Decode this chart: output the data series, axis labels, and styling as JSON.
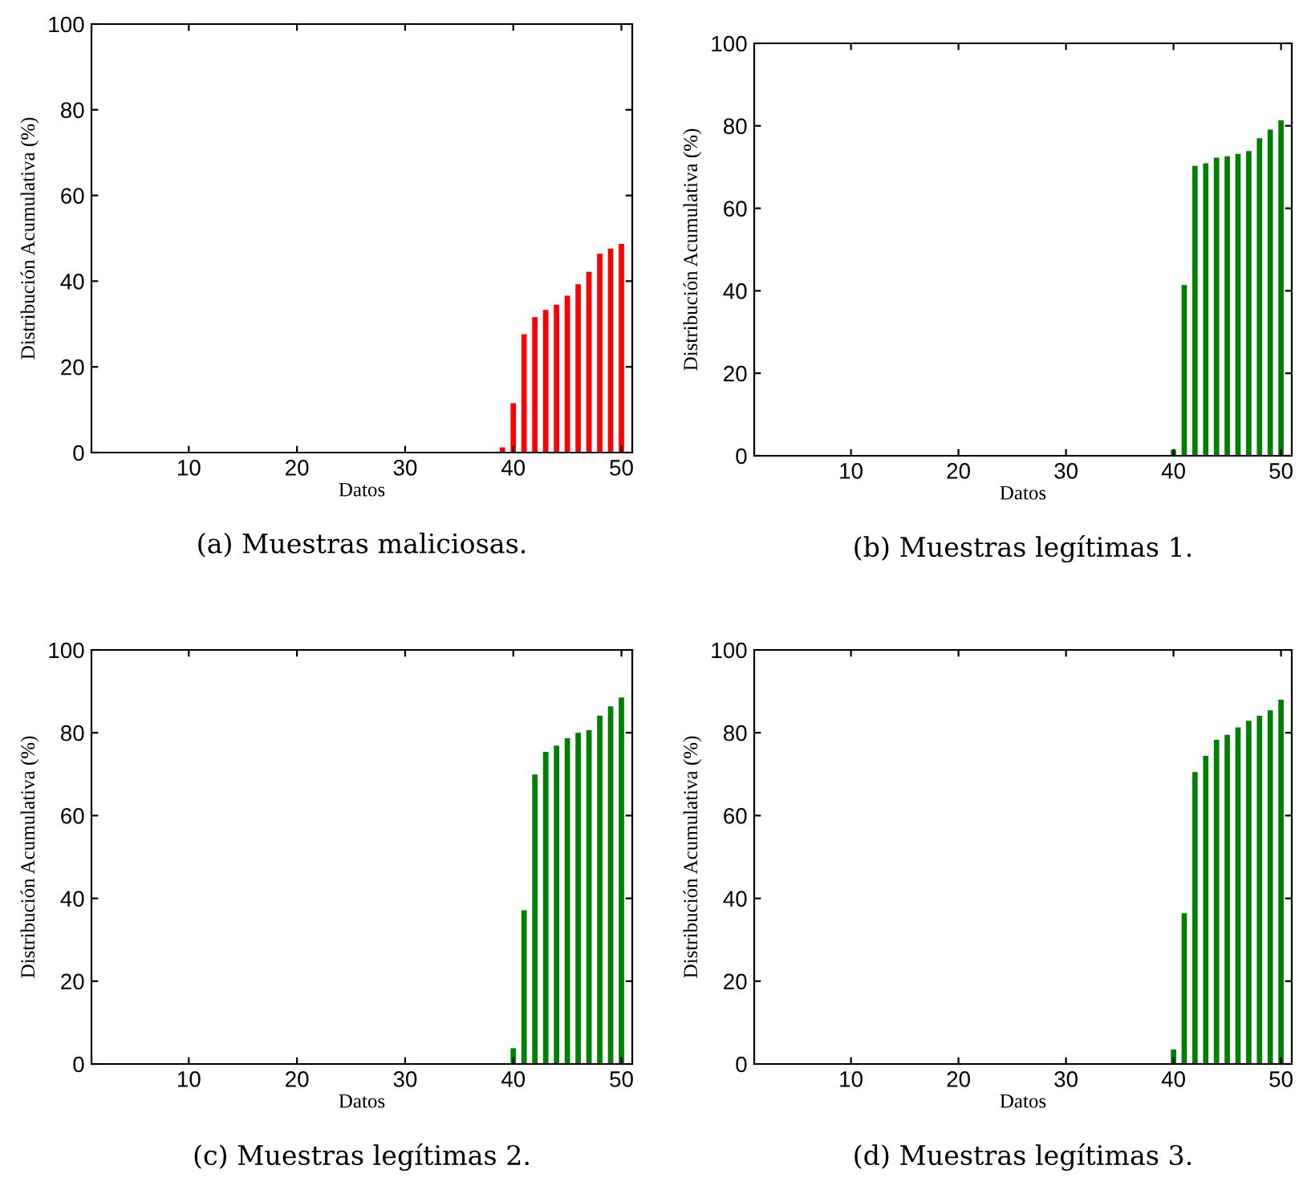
{
  "chart_data": [
    {
      "type": "bar",
      "xlabel": "Datos",
      "ylabel": "Distribución Acumulativa (%)",
      "annotations": [
        "(a) Muestras maliciosas."
      ],
      "xlim": [
        1,
        51
      ],
      "xticks": [
        10,
        20,
        30,
        40,
        50
      ],
      "ylim": [
        0,
        100
      ],
      "yticks": [
        0,
        20,
        40,
        60,
        80,
        100
      ],
      "x": [
        39,
        40,
        41,
        42,
        43,
        44,
        45,
        46,
        47,
        48,
        49,
        50
      ],
      "values": [
        1.2,
        11.5,
        27.6,
        31.6,
        33.3,
        34.5,
        36.6,
        39.3,
        42.2,
        46.4,
        47.6,
        48.7
      ],
      "color": "#ff0000"
    },
    {
      "type": "bar",
      "xlabel": "Datos",
      "ylabel": "Distribución Acumulativa (%)",
      "annotations": [
        "(b) Muestras legítimas 1."
      ],
      "xlim": [
        1,
        51
      ],
      "xticks": [
        10,
        20,
        30,
        40,
        50
      ],
      "ylim": [
        0,
        100
      ],
      "yticks": [
        0,
        20,
        40,
        60,
        80,
        100
      ],
      "x": [
        40,
        41,
        42,
        43,
        44,
        45,
        46,
        47,
        48,
        49,
        50
      ],
      "values": [
        1.5,
        41.4,
        70.3,
        70.9,
        72.3,
        72.6,
        73.2,
        73.9,
        77,
        79.1,
        81.3
      ],
      "color": "#008000"
    },
    {
      "type": "bar",
      "xlabel": "Datos",
      "ylabel": "Distribución Acumulativa (%)",
      "annotations": [
        "(c) Muestras legítimas 2."
      ],
      "xlim": [
        1,
        51
      ],
      "xticks": [
        10,
        20,
        30,
        40,
        50
      ],
      "ylim": [
        0,
        100
      ],
      "yticks": [
        0,
        20,
        40,
        60,
        80,
        100
      ],
      "x": [
        40,
        41,
        42,
        43,
        44,
        45,
        46,
        47,
        48,
        49,
        50
      ],
      "values": [
        3.8,
        37.1,
        69.9,
        75.4,
        76.9,
        78.7,
        80,
        80.6,
        84.1,
        86.4,
        88.5
      ],
      "color": "#008000"
    },
    {
      "type": "bar",
      "xlabel": "Datos",
      "ylabel": "Distribución Acumulativa (%)",
      "annotations": [
        "(d) Muestras legítimas 3."
      ],
      "xlim": [
        1,
        51
      ],
      "xticks": [
        10,
        20,
        30,
        40,
        50
      ],
      "ylim": [
        0,
        100
      ],
      "yticks": [
        0,
        20,
        40,
        60,
        80,
        100
      ],
      "x": [
        40,
        41,
        42,
        43,
        44,
        45,
        46,
        47,
        48,
        49,
        50
      ],
      "values": [
        3.5,
        36.4,
        70.5,
        74.4,
        78.3,
        79.5,
        81.3,
        82.9,
        84.1,
        85.4,
        88
      ]
    }
  ]
}
